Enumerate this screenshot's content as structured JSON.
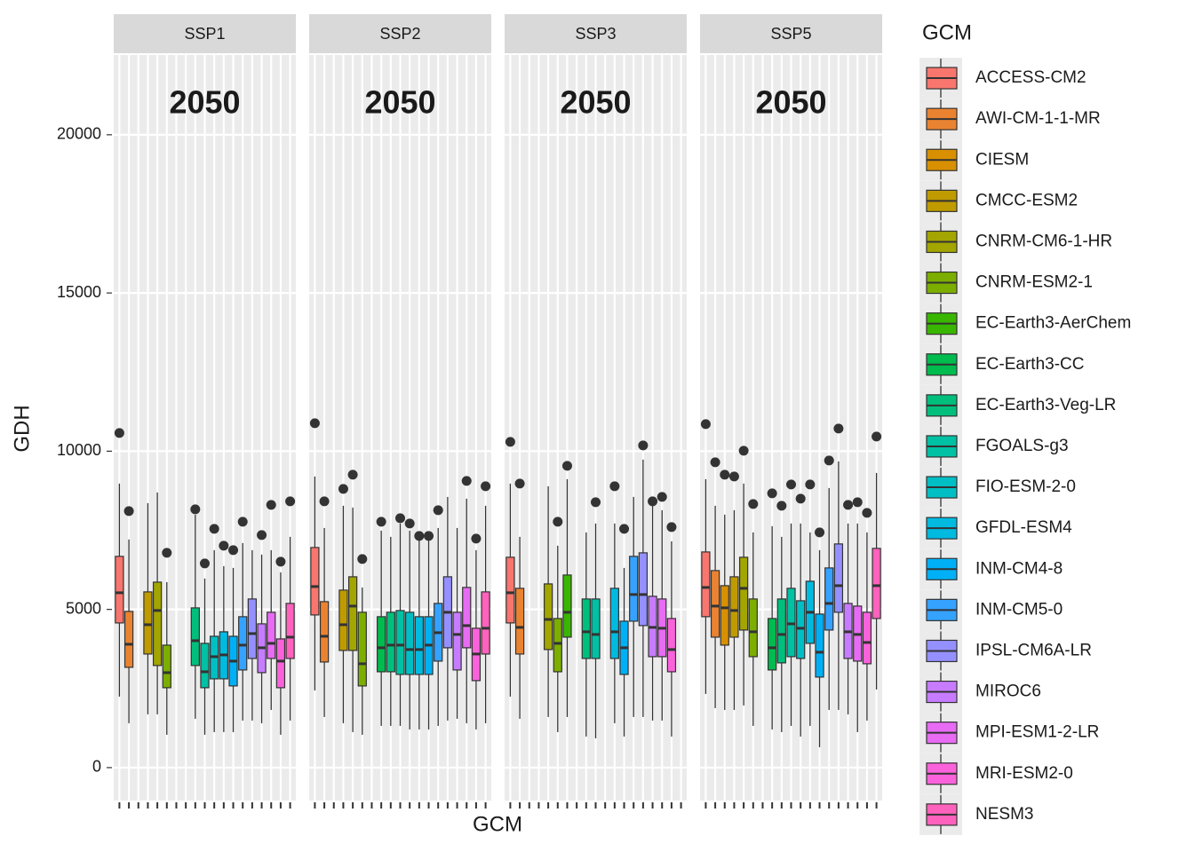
{
  "chart_data": {
    "type": "boxplot",
    "x_label": "GCM",
    "y_label": "GDH",
    "legend_title": "GCM",
    "legend_position": "right",
    "grid": true,
    "ylim": [
      -1040,
      22520
    ],
    "yticks": [
      0,
      5000,
      10000,
      15000,
      20000
    ],
    "series": [
      {
        "name": "ACCESS-CM2",
        "color": "#F8766D"
      },
      {
        "name": "AWI-CM-1-1-MR",
        "color": "#EA8331"
      },
      {
        "name": "CIESM",
        "color": "#D89000"
      },
      {
        "name": "CMCC-ESM2",
        "color": "#C09B00"
      },
      {
        "name": "CNRM-CM6-1-HR",
        "color": "#A3A500"
      },
      {
        "name": "CNRM-ESM2-1",
        "color": "#7CAE00"
      },
      {
        "name": "EC-Earth3-AerChem",
        "color": "#39B600"
      },
      {
        "name": "EC-Earth3-CC",
        "color": "#00BB4E"
      },
      {
        "name": "EC-Earth3-Veg-LR",
        "color": "#00BF7D"
      },
      {
        "name": "FGOALS-g3",
        "color": "#00C1A3"
      },
      {
        "name": "FIO-ESM-2-0",
        "color": "#00BFC4"
      },
      {
        "name": "GFDL-ESM4",
        "color": "#00BAE0"
      },
      {
        "name": "INM-CM4-8",
        "color": "#00B0F6"
      },
      {
        "name": "INM-CM5-0",
        "color": "#35A2FF"
      },
      {
        "name": "IPSL-CM6A-LR",
        "color": "#9590FF"
      },
      {
        "name": "MIROC6",
        "color": "#C77CFF"
      },
      {
        "name": "MPI-ESM1-2-LR",
        "color": "#E76BF3"
      },
      {
        "name": "MRI-ESM2-0",
        "color": "#FA62DB"
      },
      {
        "name": "NESM3",
        "color": "#FF62BC"
      }
    ],
    "facets": [
      {
        "label": "SSP1",
        "annotation": "2050",
        "boxes": [
          {
            "low": 2244,
            "q1": 4572,
            "median": 5526,
            "q3": 6676,
            "high": 8976,
            "outliers": [
              10575
            ]
          },
          {
            "low": 1403,
            "q1": 3170,
            "median": 3899,
            "q3": 4937,
            "high": 7209,
            "outliers": [
              8106
            ]
          },
          null,
          {
            "low": 1683,
            "q1": 3590,
            "median": 4516,
            "q3": 5554,
            "high": 8359,
            "outliers": []
          },
          {
            "low": 1683,
            "q1": 3226,
            "median": 4965,
            "q3": 5862,
            "high": 8696,
            "outliers": []
          },
          {
            "low": 1038,
            "q1": 2525,
            "median": 3001,
            "q3": 3871,
            "high": 5862,
            "outliers": [
              6788
            ]
          },
          null,
          null,
          {
            "low": 1543,
            "q1": 3226,
            "median": 4011,
            "q3": 5049,
            "high": 7994,
            "outliers": [
              8163
            ]
          },
          {
            "low": 1038,
            "q1": 2525,
            "median": 3029,
            "q3": 3927,
            "high": 5975,
            "outliers": [
              6452
            ]
          },
          {
            "low": 1122,
            "q1": 2805,
            "median": 3506,
            "q3": 4151,
            "high": 6872,
            "outliers": [
              7546
            ]
          },
          {
            "low": 1122,
            "q1": 2805,
            "median": 3562,
            "q3": 4292,
            "high": 6368,
            "outliers": [
              7013
            ]
          },
          {
            "low": 1122,
            "q1": 2581,
            "median": 3366,
            "q3": 4151,
            "high": 6311,
            "outliers": [
              6872
            ]
          },
          {
            "low": 1487,
            "q1": 3086,
            "median": 3871,
            "q3": 4769,
            "high": 7097,
            "outliers": [
              7770
            ]
          },
          {
            "low": 1487,
            "q1": 3450,
            "median": 4236,
            "q3": 5330,
            "high": 6872,
            "outliers": []
          },
          {
            "low": 1403,
            "q1": 3001,
            "median": 3787,
            "q3": 4544,
            "high": 6732,
            "outliers": [
              7349
            ]
          },
          {
            "low": 1823,
            "q1": 3450,
            "median": 3927,
            "q3": 4909,
            "high": 6872,
            "outliers": [
              8303
            ]
          },
          {
            "low": 1038,
            "q1": 2525,
            "median": 3366,
            "q3": 4067,
            "high": 6171,
            "outliers": [
              6508
            ]
          },
          {
            "low": 1487,
            "q1": 3450,
            "median": 4123,
            "q3": 5189,
            "high": 7293,
            "outliers": [
              8415
            ]
          }
        ]
      },
      {
        "label": "SSP2",
        "annotation": "2050",
        "boxes": [
          {
            "low": 2440,
            "q1": 4825,
            "median": 5722,
            "q3": 6956,
            "high": 9200,
            "outliers": [
              10883
            ]
          },
          {
            "low": 1599,
            "q1": 3338,
            "median": 4151,
            "q3": 5245,
            "high": 7573,
            "outliers": [
              8415
            ]
          },
          null,
          {
            "low": 1403,
            "q1": 3703,
            "median": 4516,
            "q3": 5610,
            "high": 8275,
            "outliers": [
              8808
            ]
          },
          {
            "low": 1122,
            "q1": 3703,
            "median": 5105,
            "q3": 6031,
            "high": 8219,
            "outliers": [
              9257
            ]
          },
          {
            "low": 1038,
            "q1": 2581,
            "median": 3282,
            "q3": 4909,
            "high": 5694,
            "outliers": [
              6592
            ]
          },
          null,
          {
            "low": 1318,
            "q1": 3029,
            "median": 3787,
            "q3": 4769,
            "high": 7489,
            "outliers": [
              7770
            ]
          },
          {
            "low": 1318,
            "q1": 3029,
            "median": 3871,
            "q3": 4909,
            "high": 7293,
            "outliers": []
          },
          {
            "low": 1318,
            "q1": 2945,
            "median": 3871,
            "q3": 4965,
            "high": 7714,
            "outliers": [
              7882
            ]
          },
          {
            "low": 1206,
            "q1": 2945,
            "median": 3731,
            "q3": 4909,
            "high": 7489,
            "outliers": [
              7714
            ]
          },
          {
            "low": 1206,
            "q1": 2945,
            "median": 3731,
            "q3": 4769,
            "high": 7293,
            "outliers": [
              7321
            ]
          },
          {
            "low": 1206,
            "q1": 2945,
            "median": 3871,
            "q3": 4769,
            "high": 7293,
            "outliers": [
              7321
            ]
          },
          {
            "low": 1318,
            "q1": 3366,
            "median": 4264,
            "q3": 5189,
            "high": 7573,
            "outliers": [
              8135
            ]
          },
          {
            "low": 1487,
            "q1": 3787,
            "median": 4909,
            "q3": 6031,
            "high": 8555,
            "outliers": []
          },
          {
            "low": 1543,
            "q1": 3086,
            "median": 4208,
            "q3": 4909,
            "high": 7573,
            "outliers": []
          },
          {
            "low": 1403,
            "q1": 3787,
            "median": 4488,
            "q3": 5694,
            "high": 8499,
            "outliers": [
              9060
            ]
          },
          {
            "low": 1206,
            "q1": 2749,
            "median": 3590,
            "q3": 4404,
            "high": 6872,
            "outliers": [
              7237
            ]
          },
          {
            "low": 1403,
            "q1": 3590,
            "median": 4404,
            "q3": 5554,
            "high": 8275,
            "outliers": [
              8892
            ]
          }
        ]
      },
      {
        "label": "SSP3",
        "annotation": "2050",
        "boxes": [
          {
            "low": 2244,
            "q1": 4572,
            "median": 5526,
            "q3": 6648,
            "high": 8976,
            "outliers": [
              10294
            ]
          },
          {
            "low": 1543,
            "q1": 3590,
            "median": 4432,
            "q3": 5666,
            "high": 7293,
            "outliers": [
              8976
            ]
          },
          null,
          null,
          {
            "low": 1599,
            "q1": 3731,
            "median": 4684,
            "q3": 5806,
            "high": 8892,
            "outliers": []
          },
          {
            "low": 1122,
            "q1": 3029,
            "median": 3927,
            "q3": 4712,
            "high": 7013,
            "outliers": [
              7770
            ]
          },
          {
            "low": 1599,
            "q1": 4123,
            "median": 4909,
            "q3": 6087,
            "high": 9116,
            "outliers": [
              9537
            ]
          },
          null,
          {
            "low": 982,
            "q1": 3450,
            "median": 4292,
            "q3": 5330,
            "high": 7433,
            "outliers": []
          },
          {
            "low": 926,
            "q1": 3450,
            "median": 4208,
            "q3": 5330,
            "high": 7714,
            "outliers": [
              8387
            ]
          },
          null,
          {
            "low": 1403,
            "q1": 3450,
            "median": 4292,
            "q3": 5666,
            "high": 7714,
            "outliers": [
              8892
            ]
          },
          {
            "low": 982,
            "q1": 2945,
            "median": 3787,
            "q3": 4628,
            "high": 6311,
            "outliers": [
              7546
            ]
          },
          {
            "low": 1599,
            "q1": 4628,
            "median": 5470,
            "q3": 6676,
            "high": 8555,
            "outliers": []
          },
          {
            "low": 1599,
            "q1": 4488,
            "median": 5470,
            "q3": 6788,
            "high": 9733,
            "outliers": [
              10182
            ]
          },
          {
            "low": 1487,
            "q1": 3506,
            "median": 4432,
            "q3": 5414,
            "high": 8275,
            "outliers": [
              8415
            ]
          },
          {
            "low": 1487,
            "q1": 3506,
            "median": 4404,
            "q3": 5330,
            "high": 8135,
            "outliers": [
              8555
            ]
          },
          {
            "low": 982,
            "q1": 3029,
            "median": 3731,
            "q3": 4712,
            "high": 7153,
            "outliers": [
              7602
            ]
          },
          null
        ]
      },
      {
        "label": "SSP5",
        "annotation": "2050",
        "boxes": [
          {
            "low": 2328,
            "q1": 4769,
            "median": 5694,
            "q3": 6816,
            "high": 9116,
            "outliers": [
              10855
            ]
          },
          {
            "low": 1879,
            "q1": 4123,
            "median": 5105,
            "q3": 6227,
            "high": 8275,
            "outliers": [
              9649
            ]
          },
          {
            "low": 1823,
            "q1": 3871,
            "median": 5049,
            "q3": 5750,
            "high": 7994,
            "outliers": [
              9257
            ]
          },
          {
            "low": 1823,
            "q1": 4123,
            "median": 4965,
            "q3": 6031,
            "high": 8135,
            "outliers": [
              9200
            ]
          },
          {
            "low": 1964,
            "q1": 4348,
            "median": 5666,
            "q3": 6648,
            "high": 8976,
            "outliers": [
              10014
            ]
          },
          {
            "low": 1318,
            "q1": 3506,
            "median": 4292,
            "q3": 5330,
            "high": 7433,
            "outliers": [
              8331
            ]
          },
          null,
          {
            "low": 1206,
            "q1": 3086,
            "median": 3787,
            "q3": 4712,
            "high": 7630,
            "outliers": [
              8668
            ]
          },
          {
            "low": 1122,
            "q1": 3310,
            "median": 4208,
            "q3": 5330,
            "high": 7293,
            "outliers": [
              8275
            ]
          },
          {
            "low": 1318,
            "q1": 3506,
            "median": 4544,
            "q3": 5666,
            "high": 7714,
            "outliers": [
              8948
            ]
          },
          {
            "low": 982,
            "q1": 3450,
            "median": 4404,
            "q3": 5273,
            "high": 7714,
            "outliers": [
              8499
            ]
          },
          {
            "low": 1318,
            "q1": 3927,
            "median": 4909,
            "q3": 5890,
            "high": 7433,
            "outliers": [
              8948
            ]
          },
          {
            "low": 645,
            "q1": 2861,
            "median": 3647,
            "q3": 4853,
            "high": 6872,
            "outliers": [
              7433
            ]
          },
          {
            "low": 1823,
            "q1": 4348,
            "median": 5189,
            "q3": 6311,
            "high": 8836,
            "outliers": [
              9705
            ]
          },
          {
            "low": 1823,
            "q1": 4909,
            "median": 5750,
            "q3": 7069,
            "high": 9677,
            "outliers": [
              10715
            ]
          },
          {
            "low": 1683,
            "q1": 3450,
            "median": 4292,
            "q3": 5189,
            "high": 7714,
            "outliers": [
              8303
            ]
          },
          {
            "low": 1122,
            "q1": 3366,
            "median": 4208,
            "q3": 5105,
            "high": 7714,
            "outliers": [
              8387
            ]
          },
          {
            "low": 1487,
            "q1": 3282,
            "median": 3955,
            "q3": 4909,
            "high": 7433,
            "outliers": [
              8050
            ]
          },
          {
            "low": 2468,
            "q1": 4712,
            "median": 5750,
            "q3": 6928,
            "high": 9313,
            "outliers": [
              10463
            ]
          }
        ]
      }
    ]
  }
}
